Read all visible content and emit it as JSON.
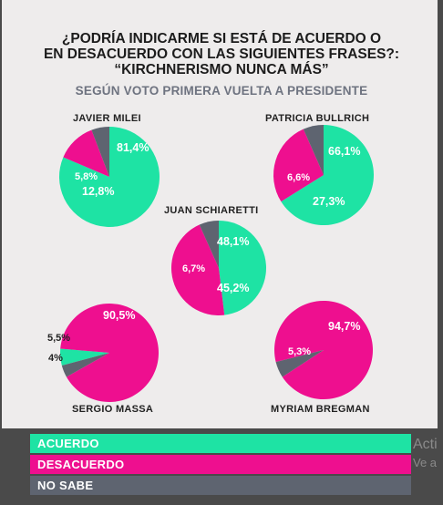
{
  "title_lines": [
    "¿PODRÍA INDICARME SI ESTÁ DE ACUERDO O",
    "EN DESACUERDO CON LAS SIGUIENTES FRASES?:",
    "“KIRCHNERISMO NUNCA MÁS”"
  ],
  "subtitle": "SEGÚN VOTO PRIMERA VUELTA A PRESIDENTE",
  "colors": {
    "acuerdo": "#1ee3a4",
    "desacuerdo": "#ee0f8f",
    "no_sabe": "#5e6470"
  },
  "legend": [
    "ACUERDO",
    "DESACUERDO",
    "NO SABE"
  ],
  "watermark": {
    "line1": "Acti",
    "line2": "Ve a"
  },
  "chart_data": [
    {
      "type": "pie",
      "candidate": "JAVIER MILEI",
      "slices": [
        {
          "category": "ACUERDO",
          "value": 81.4,
          "label": "81,4%"
        },
        {
          "category": "DESACUERDO",
          "value": 12.8,
          "label": "12,8%"
        },
        {
          "category": "NO SABE",
          "value": 5.8,
          "label": "5,8%"
        }
      ]
    },
    {
      "type": "pie",
      "candidate": "PATRICIA BULLRICH",
      "slices": [
        {
          "category": "ACUERDO",
          "value": 66.1,
          "label": "66,1%"
        },
        {
          "category": "DESACUERDO",
          "value": 27.3,
          "label": "27,3%"
        },
        {
          "category": "NO SABE",
          "value": 6.6,
          "label": "6,6%"
        }
      ]
    },
    {
      "type": "pie",
      "candidate": "JUAN SCHIARETTI",
      "slices": [
        {
          "category": "ACUERDO",
          "value": 48.1,
          "label": "48,1%"
        },
        {
          "category": "DESACUERDO",
          "value": 45.2,
          "label": "45,2%"
        },
        {
          "category": "NO SABE",
          "value": 6.7,
          "label": "6,7%"
        }
      ]
    },
    {
      "type": "pie",
      "candidate": "SERGIO MASSA",
      "slices": [
        {
          "category": "ACUERDO",
          "value": 5.5,
          "label": "5,5%"
        },
        {
          "category": "DESACUERDO",
          "value": 90.5,
          "label": "90,5%"
        },
        {
          "category": "NO SABE",
          "value": 4.0,
          "label": "4%"
        }
      ]
    },
    {
      "type": "pie",
      "candidate": "MYRIAM BREGMAN",
      "slices": [
        {
          "category": "ACUERDO",
          "value": 0,
          "label": ""
        },
        {
          "category": "DESACUERDO",
          "value": 94.7,
          "label": "94,7%"
        },
        {
          "category": "NO SABE",
          "value": 5.3,
          "label": "5,3%"
        }
      ]
    }
  ]
}
